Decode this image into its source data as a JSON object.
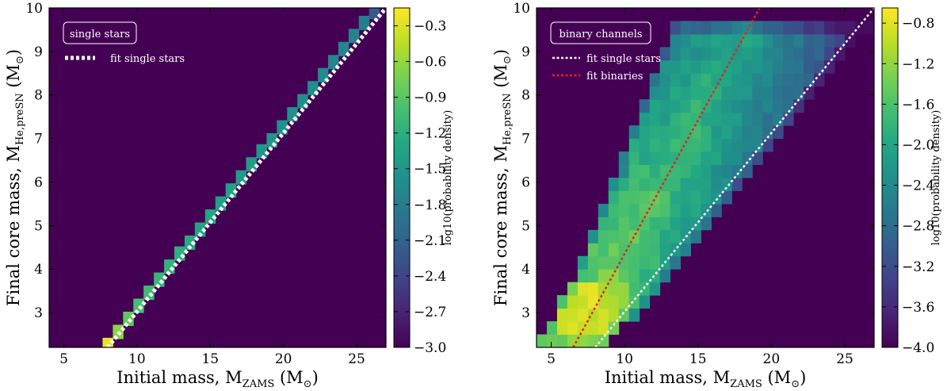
{
  "chart_data": [
    {
      "type": "heatmap",
      "panel_label": "single stars",
      "xlabel": "Initial mass, M",
      "xlabel_sub": "ZAMS",
      "xlabel_unit": "(M",
      "xlabel_unit_close": ")",
      "ylabel": "Final core mass, M",
      "ylabel_sub": "He,preSN",
      "ylabel_unit": "(M",
      "ylabel_unit_close": ")",
      "xlim": [
        4,
        27
      ],
      "ylim": [
        2.2,
        10
      ],
      "xticks": [
        "5",
        "10",
        "15",
        "20",
        "25"
      ],
      "yticks": [
        "3",
        "4",
        "5",
        "6",
        "7",
        "8",
        "9",
        "10"
      ],
      "colorbar_label": "log10(probability density)",
      "colorbar_range": [
        -3.0,
        -0.15
      ],
      "colorbar_ticks": [
        "-0.3",
        "-0.6",
        "-0.9",
        "-1.2",
        "-1.5",
        "-1.8",
        "-2.1",
        "-2.4",
        "-2.7",
        "-3.0"
      ],
      "background_value": -3.0,
      "legend": [
        {
          "label": "fit single stars",
          "color": "#ffffff",
          "style": "dotted-thick"
        }
      ],
      "fit_lines": [
        {
          "name": "fit single stars",
          "points": [
            [
              8.0,
              2.2
            ],
            [
              27.0,
              10.0
            ]
          ],
          "color": "#ffffff"
        }
      ],
      "cells_desc": "diagonal band of cells along the single-star relation, value decreasing with mass",
      "cells": [
        [
          8.0,
          2.25,
          -0.25
        ],
        [
          8.7,
          2.55,
          -0.65
        ],
        [
          9.4,
          2.85,
          -0.85
        ],
        [
          10.1,
          3.15,
          -1.0
        ],
        [
          10.8,
          3.45,
          -1.05
        ],
        [
          11.5,
          3.75,
          -1.1
        ],
        [
          12.2,
          4.05,
          -1.15
        ],
        [
          12.9,
          4.35,
          -1.2
        ],
        [
          13.6,
          4.6,
          -1.25
        ],
        [
          14.3,
          4.9,
          -1.35
        ],
        [
          15.0,
          5.2,
          -1.3
        ],
        [
          15.7,
          5.5,
          -1.4
        ],
        [
          16.4,
          5.8,
          -1.35
        ],
        [
          17.1,
          6.1,
          -1.45
        ],
        [
          17.8,
          6.4,
          -1.45
        ],
        [
          18.5,
          6.7,
          -1.5
        ],
        [
          19.2,
          6.95,
          -1.5
        ],
        [
          19.9,
          7.25,
          -1.55
        ],
        [
          20.6,
          7.55,
          -1.55
        ],
        [
          21.3,
          7.85,
          -1.6
        ],
        [
          22.0,
          8.15,
          -1.6
        ],
        [
          22.7,
          8.45,
          -1.65
        ],
        [
          23.4,
          8.75,
          -1.7
        ],
        [
          24.1,
          9.05,
          -1.7
        ],
        [
          24.8,
          9.35,
          -1.75
        ],
        [
          25.5,
          9.65,
          -1.8
        ],
        [
          26.2,
          9.9,
          -2.2
        ]
      ]
    },
    {
      "type": "heatmap",
      "panel_label": "binary channels",
      "xlabel": "Initial mass, M",
      "xlabel_sub": "ZAMS",
      "xlabel_unit": "(M",
      "xlabel_unit_close": ")",
      "ylabel": "Final core mass, M",
      "ylabel_sub": "He,preSN",
      "ylabel_unit": "(M",
      "ylabel_unit_close": ")",
      "xlim": [
        4,
        27
      ],
      "ylim": [
        2.2,
        10
      ],
      "xticks": [
        "5",
        "10",
        "15",
        "20",
        "25"
      ],
      "yticks": [
        "3",
        "4",
        "5",
        "6",
        "7",
        "8",
        "9",
        "10"
      ],
      "colorbar_label": "log10(probability density)",
      "colorbar_range": [
        -4.0,
        -0.65
      ],
      "colorbar_ticks": [
        "-0.8",
        "-1.2",
        "-1.6",
        "-2.0",
        "-2.4",
        "-2.8",
        "-3.2",
        "-3.6",
        "-4.0"
      ],
      "background_value": -4.0,
      "legend": [
        {
          "label": "fit single stars",
          "color": "#ffffff",
          "style": "dotted"
        },
        {
          "label": "fit binaries",
          "color": "#e8231c",
          "style": "dotted"
        }
      ],
      "fit_lines": [
        {
          "name": "fit single stars",
          "points": [
            [
              8.0,
              2.2
            ],
            [
              27.0,
              10.0
            ]
          ],
          "color": "#ffffff"
        },
        {
          "name": "fit binaries",
          "points": [
            [
              6.5,
              2.2
            ],
            [
              19.2,
              10.0
            ]
          ],
          "color": "#e8231c"
        }
      ],
      "region": {
        "desc": "wedge-shaped occupied region between lower boundary (single-star line) and upper boundary, capped at 9.8",
        "top_cap": 9.8
      }
    }
  ]
}
